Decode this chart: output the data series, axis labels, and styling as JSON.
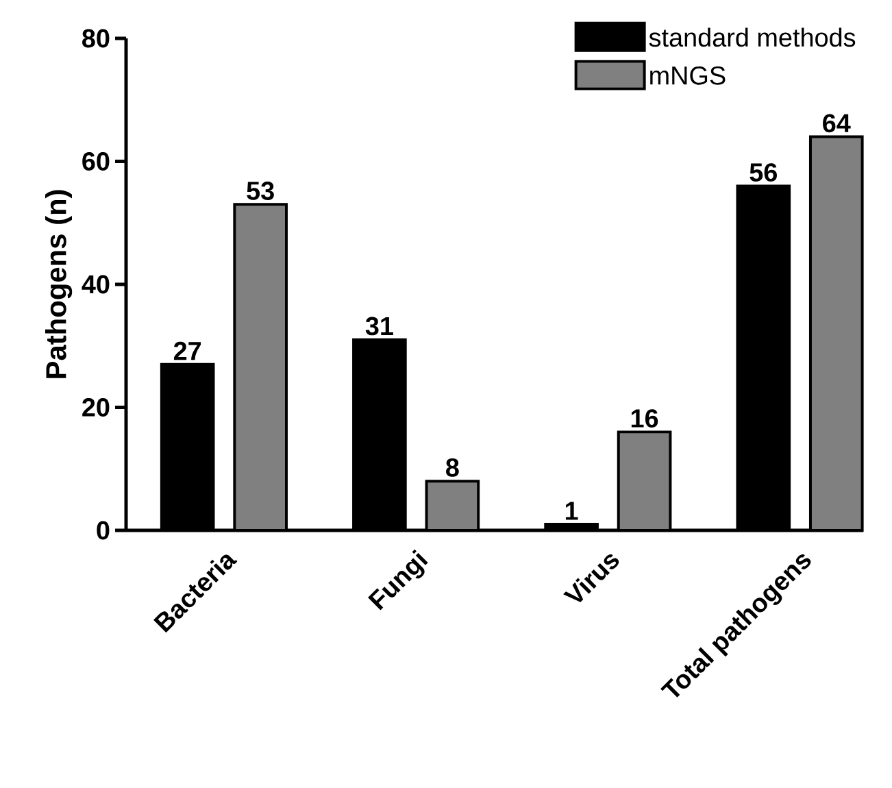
{
  "chart_data": {
    "type": "bar",
    "ylabel": "Pathogens (n)",
    "categories": [
      "Bacteria",
      "Fungi",
      "Virus",
      "Total pathogens"
    ],
    "series": [
      {
        "name": "standard methods",
        "color": "#000000",
        "values": [
          27,
          31,
          1,
          56
        ]
      },
      {
        "name": "mNGS",
        "color": "#808080",
        "values": [
          53,
          8,
          16,
          64
        ]
      }
    ],
    "ylim": [
      0,
      80
    ],
    "yticks": [
      0,
      20,
      40,
      60,
      80
    ],
    "data_labels": true,
    "legend": "top right",
    "grid": false
  }
}
